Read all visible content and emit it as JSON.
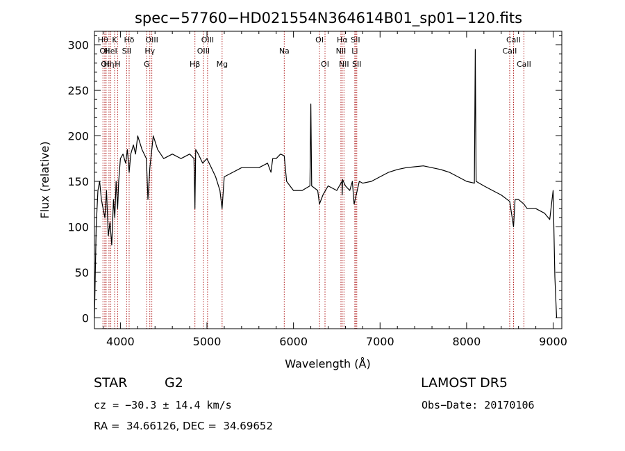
{
  "chart_data": {
    "type": "line",
    "title": "spec−57760−HD021554N364614B01_sp01−120.fits",
    "xlabel": "Wavelength (Å)",
    "ylabel": "Flux (relative)",
    "xlim": [
      3700,
      9100
    ],
    "ylim": [
      -12,
      315
    ],
    "x_ticks": [
      4000,
      5000,
      6000,
      7000,
      8000,
      9000
    ],
    "y_ticks": [
      0,
      50,
      100,
      150,
      200,
      250,
      300
    ],
    "grid": false,
    "legend": "none",
    "line_color": "#000000",
    "marker_color": "#b22222",
    "series": [
      {
        "x": [
          3700,
          3720,
          3740,
          3760,
          3780,
          3800,
          3820,
          3840,
          3860,
          3880,
          3900,
          3920,
          3935,
          3950,
          3968,
          3980,
          4000,
          4030,
          4060,
          4080,
          4101,
          4120,
          4150,
          4175,
          4200,
          4250,
          4300,
          4318,
          4340,
          4380,
          4430,
          4500,
          4600,
          4700,
          4800,
          4850,
          4861,
          4870,
          4900,
          4950,
          5000,
          5050,
          5100,
          5150,
          5175,
          5200,
          5300,
          5400,
          5500,
          5600,
          5700,
          5740,
          5760,
          5800,
          5850,
          5893,
          5920,
          6000,
          6100,
          6190,
          6200,
          6210,
          6280,
          6300,
          6340,
          6400,
          6500,
          6560,
          6563,
          6567,
          6600,
          6650,
          6680,
          6700,
          6760,
          6800,
          6900,
          7000,
          7100,
          7200,
          7300,
          7400,
          7500,
          7600,
          7700,
          7800,
          7900,
          8000,
          8090,
          8100,
          8110,
          8200,
          8300,
          8400,
          8498,
          8542,
          8560,
          8600,
          8662,
          8700,
          8800,
          8900,
          8960,
          9000,
          9020,
          9040
        ],
        "y": [
          0,
          100,
          140,
          150,
          130,
          120,
          110,
          140,
          90,
          105,
          80,
          130,
          110,
          150,
          120,
          150,
          175,
          180,
          170,
          185,
          160,
          180,
          190,
          180,
          200,
          185,
          175,
          130,
          165,
          200,
          185,
          175,
          180,
          175,
          180,
          175,
          120,
          185,
          180,
          170,
          175,
          165,
          155,
          140,
          120,
          155,
          160,
          165,
          165,
          165,
          170,
          160,
          175,
          175,
          180,
          178,
          150,
          140,
          140,
          145,
          235,
          145,
          140,
          125,
          135,
          145,
          140,
          150,
          135,
          152,
          145,
          140,
          150,
          125,
          150,
          148,
          150,
          155,
          160,
          163,
          165,
          166,
          167,
          165,
          163,
          160,
          155,
          150,
          148,
          295,
          150,
          145,
          140,
          135,
          128,
          100,
          130,
          130,
          125,
          120,
          120,
          115,
          108,
          140,
          45,
          0
        ]
      }
    ],
    "line_markers": [
      {
        "x": 3798,
        "row": 1,
        "text": "Hθ"
      },
      {
        "x": 3820,
        "row": 2,
        "text": "OII"
      },
      {
        "x": 3835,
        "row": 3,
        "text": "OII"
      },
      {
        "x": 3868,
        "row": 3,
        "text": "Hη"
      },
      {
        "x": 3889,
        "row": 2,
        "text": "HeI"
      },
      {
        "x": 3933,
        "row": 1,
        "text": "K"
      },
      {
        "x": 3968,
        "row": 3,
        "text": "H"
      },
      {
        "x": 4072,
        "row": 2,
        "text": "SII"
      },
      {
        "x": 4101,
        "row": 1,
        "text": "Hδ"
      },
      {
        "x": 4304,
        "row": 3,
        "text": "G"
      },
      {
        "x": 4340,
        "row": 2,
        "text": "Hγ"
      },
      {
        "x": 4363,
        "row": 1,
        "text": "OIII"
      },
      {
        "x": 4861,
        "row": 3,
        "text": "Hβ"
      },
      {
        "x": 4959,
        "row": 2,
        "text": "OIII"
      },
      {
        "x": 5007,
        "row": 1,
        "text": "OIII"
      },
      {
        "x": 5175,
        "row": 3,
        "text": "Mg"
      },
      {
        "x": 5893,
        "row": 2,
        "text": "Na"
      },
      {
        "x": 6300,
        "row": 1,
        "text": "OI"
      },
      {
        "x": 6364,
        "row": 3,
        "text": "OI"
      },
      {
        "x": 6548,
        "row": 2,
        "text": "NII"
      },
      {
        "x": 6563,
        "row": 1,
        "text": "Hα"
      },
      {
        "x": 6583,
        "row": 3,
        "text": "NII"
      },
      {
        "x": 6708,
        "row": 2,
        "text": "Li"
      },
      {
        "x": 6716,
        "row": 1,
        "text": "SII"
      },
      {
        "x": 6731,
        "row": 3,
        "text": "SII"
      },
      {
        "x": 8498,
        "row": 2,
        "text": "CaII"
      },
      {
        "x": 8542,
        "row": 1,
        "text": "CaII"
      },
      {
        "x": 8662,
        "row": 3,
        "text": "CaII"
      }
    ]
  },
  "footer": {
    "object_type": "STAR",
    "subclass": "G2",
    "survey": "LAMOST DR5",
    "redshift": "cz = −30.3 ± 14.4 km/s",
    "obs_date": "Obs−Date: 20170106",
    "coordinates": "RA =  34.66126, DEC =  34.69652"
  }
}
